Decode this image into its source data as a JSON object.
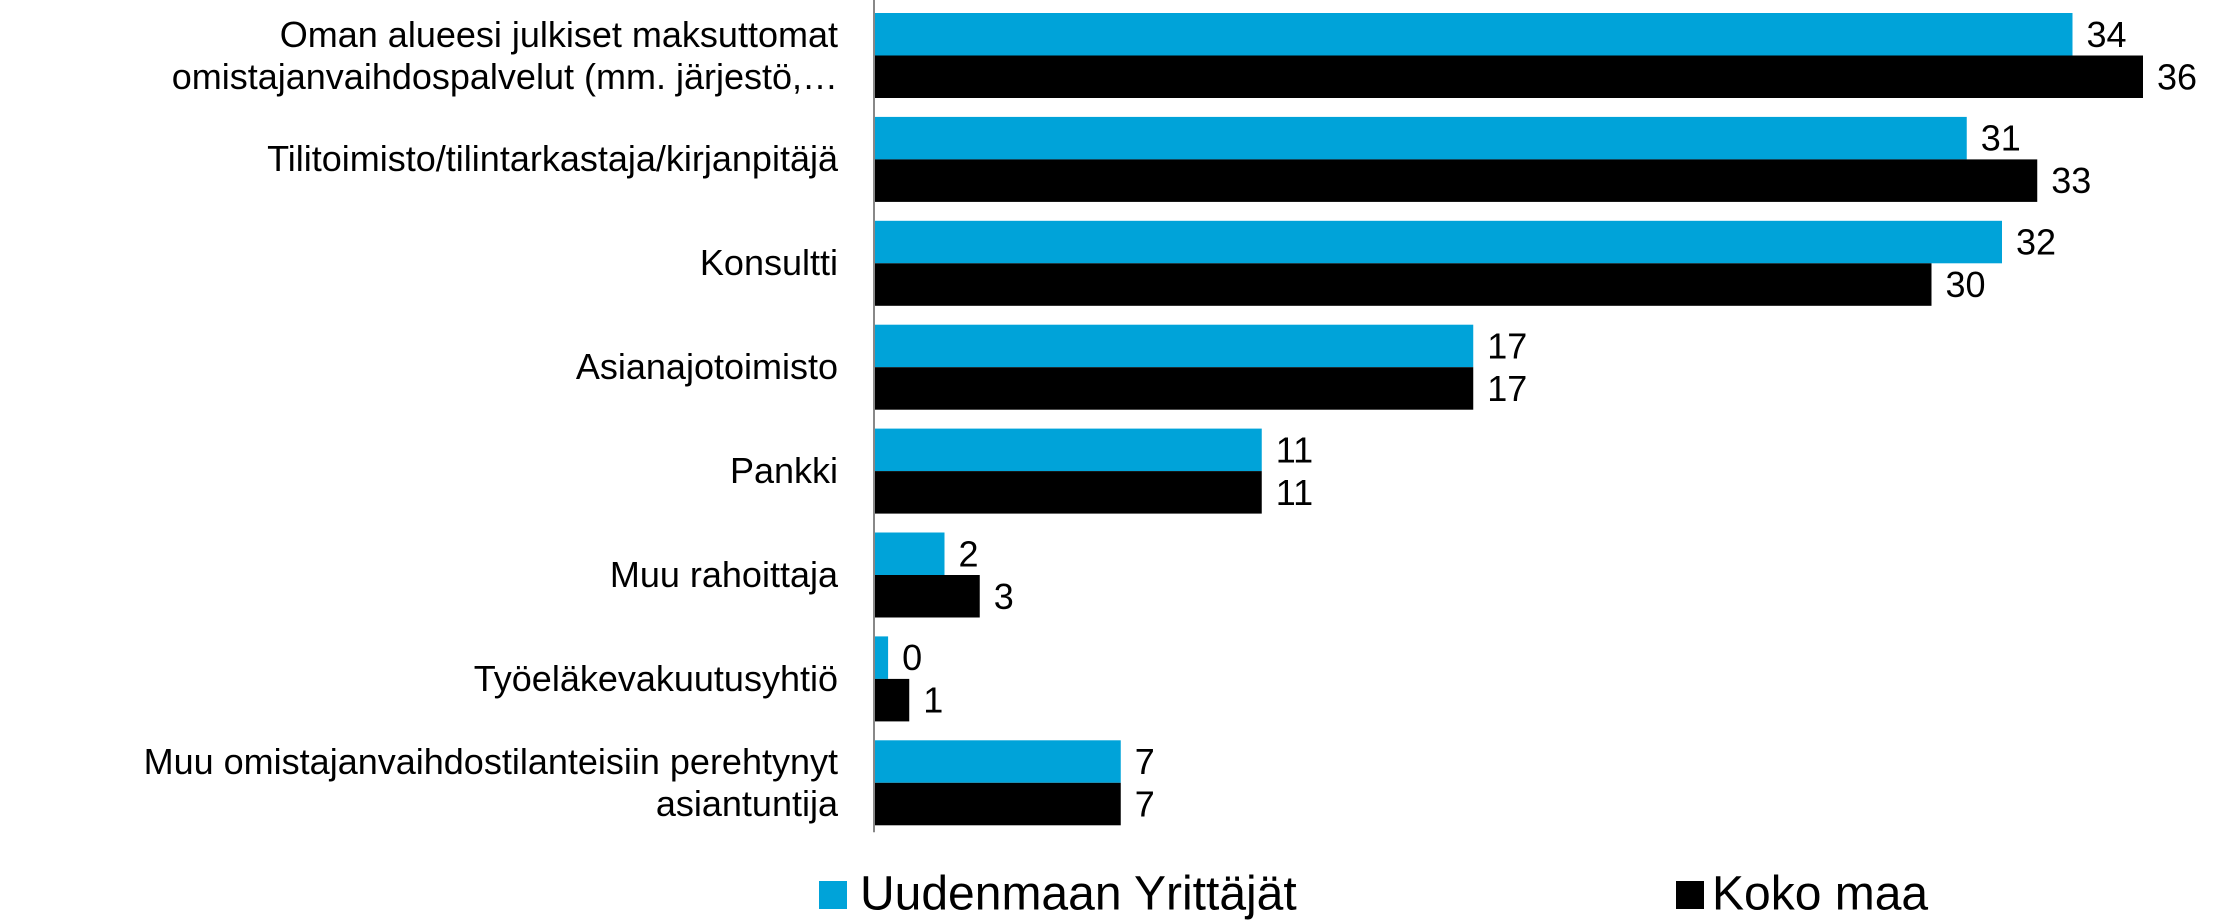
{
  "chart_data": {
    "type": "bar",
    "orientation": "horizontal",
    "categories": [
      "Oman alueesi julkiset maksuttomat omistajanvaihdospalvelut (mm. järjestö,…",
      "Tilitoimisto/tilintarkastaja/kirjanpitäjä",
      "Konsultti",
      "Asianajotoimisto",
      "Pankki",
      "Muu rahoittaja",
      "Työeläkevakuutusyhtiö",
      "Muu omistajanvaihdostilanteisiin perehtynyt asiantuntija"
    ],
    "series": [
      {
        "name": "Uudenmaan Yrittäjät",
        "color": "#00a3d9",
        "values": [
          34,
          31,
          32,
          17,
          11,
          2,
          0.4,
          7
        ],
        "value_labels": [
          "34",
          "31",
          "32",
          "17",
          "11",
          "2",
          "0",
          "7"
        ]
      },
      {
        "name": "Koko maa",
        "color": "#000000",
        "values": [
          36,
          33,
          30,
          17,
          11,
          3,
          1,
          7
        ]
      }
    ]
  }
}
